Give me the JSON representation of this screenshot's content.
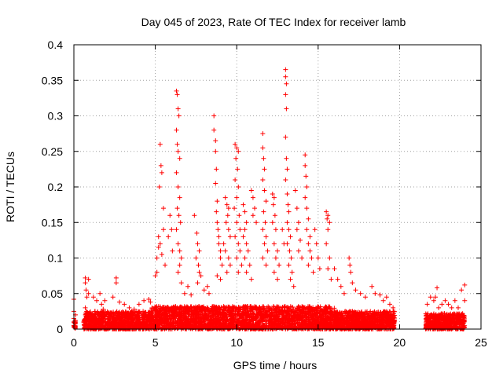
{
  "chart_data": {
    "type": "scatter",
    "title": "Day 045 of 2023, Rate Of TEC Index for receiver lamb",
    "xlabel": "GPS time / hours",
    "ylabel": "ROTI / TECUs",
    "xlim": [
      0,
      25
    ],
    "ylim": [
      0,
      0.4
    ],
    "xticks": [
      0,
      5,
      10,
      15,
      20,
      25
    ],
    "xtick_labels": [
      "0",
      "5",
      "10",
      "15",
      "20",
      "25"
    ],
    "yticks": [
      0,
      0.05,
      0.1,
      0.15,
      0.2,
      0.25,
      0.3,
      0.35,
      0.4
    ],
    "ytick_labels": [
      "0",
      "0.05",
      "0.1",
      "0.15",
      "0.2",
      "0.25",
      "0.3",
      "0.35",
      "0.4"
    ],
    "grid": true,
    "marker": "+",
    "color": "#ff0000",
    "series": [
      {
        "name": "",
        "points": [
          [
            0.0,
            0.042
          ],
          [
            0.0,
            0.025
          ],
          [
            0.0,
            0.015
          ],
          [
            0.0,
            0.01
          ],
          [
            0.0,
            0.005
          ],
          [
            0.1,
            0.02
          ],
          [
            0.1,
            0.012
          ],
          [
            0.1,
            0.008
          ],
          [
            0.0,
            0.003
          ],
          [
            0.7,
            0.072
          ],
          [
            0.7,
            0.065
          ],
          [
            0.75,
            0.055
          ],
          [
            0.8,
            0.045
          ],
          [
            0.9,
            0.07
          ],
          [
            0.9,
            0.05
          ],
          [
            0.7,
            0.03
          ],
          [
            0.8,
            0.02
          ],
          [
            1.2,
            0.045
          ],
          [
            1.4,
            0.04
          ],
          [
            1.6,
            0.05
          ],
          [
            1.7,
            0.035
          ],
          [
            1.9,
            0.04
          ],
          [
            1.3,
            0.025
          ],
          [
            1.8,
            0.028
          ],
          [
            2.6,
            0.072
          ],
          [
            2.6,
            0.065
          ],
          [
            2.4,
            0.045
          ],
          [
            2.8,
            0.038
          ],
          [
            3.1,
            0.035
          ],
          [
            3.4,
            0.03
          ],
          [
            3.7,
            0.028
          ],
          [
            4.0,
            0.035
          ],
          [
            4.3,
            0.04
          ],
          [
            4.6,
            0.042
          ],
          [
            4.7,
            0.038
          ],
          [
            5.0,
            0.075
          ],
          [
            5.1,
            0.1
          ],
          [
            5.2,
            0.13
          ],
          [
            5.25,
            0.2
          ],
          [
            5.3,
            0.26
          ],
          [
            5.35,
            0.23
          ],
          [
            5.4,
            0.22
          ],
          [
            5.5,
            0.17
          ],
          [
            5.5,
            0.14
          ],
          [
            5.6,
            0.09
          ],
          [
            5.3,
            0.12
          ],
          [
            5.2,
            0.115
          ],
          [
            5.4,
            0.105
          ],
          [
            5.1,
            0.08
          ],
          [
            5.8,
            0.13
          ],
          [
            5.9,
            0.16
          ],
          [
            6.0,
            0.14
          ],
          [
            6.05,
            0.11
          ],
          [
            6.3,
            0.335
          ],
          [
            6.35,
            0.33
          ],
          [
            6.4,
            0.31
          ],
          [
            6.45,
            0.3
          ],
          [
            6.3,
            0.28
          ],
          [
            6.35,
            0.26
          ],
          [
            6.4,
            0.25
          ],
          [
            6.5,
            0.24
          ],
          [
            6.3,
            0.22
          ],
          [
            6.4,
            0.2
          ],
          [
            6.5,
            0.185
          ],
          [
            6.35,
            0.17
          ],
          [
            6.45,
            0.16
          ],
          [
            6.55,
            0.15
          ],
          [
            6.3,
            0.14
          ],
          [
            6.4,
            0.12
          ],
          [
            6.5,
            0.11
          ],
          [
            6.6,
            0.1
          ],
          [
            6.5,
            0.09
          ],
          [
            6.4,
            0.08
          ],
          [
            6.6,
            0.065
          ],
          [
            6.8,
            0.05
          ],
          [
            7.0,
            0.06
          ],
          [
            7.2,
            0.048
          ],
          [
            7.4,
            0.16
          ],
          [
            7.55,
            0.135
          ],
          [
            7.6,
            0.12
          ],
          [
            7.7,
            0.11
          ],
          [
            7.5,
            0.1
          ],
          [
            7.65,
            0.09
          ],
          [
            7.8,
            0.075
          ],
          [
            7.6,
            0.065
          ],
          [
            7.7,
            0.08
          ],
          [
            8.0,
            0.055
          ],
          [
            8.2,
            0.06
          ],
          [
            8.3,
            0.05
          ],
          [
            8.6,
            0.3
          ],
          [
            8.6,
            0.28
          ],
          [
            8.7,
            0.265
          ],
          [
            8.7,
            0.25
          ],
          [
            8.75,
            0.225
          ],
          [
            8.7,
            0.205
          ],
          [
            8.8,
            0.18
          ],
          [
            8.75,
            0.165
          ],
          [
            8.8,
            0.15
          ],
          [
            8.85,
            0.14
          ],
          [
            8.9,
            0.13
          ],
          [
            8.9,
            0.12
          ],
          [
            9.0,
            0.11
          ],
          [
            9.0,
            0.1
          ],
          [
            9.1,
            0.09
          ],
          [
            8.8,
            0.075
          ],
          [
            9.0,
            0.07
          ],
          [
            9.3,
            0.185
          ],
          [
            9.4,
            0.175
          ],
          [
            9.5,
            0.17
          ],
          [
            9.45,
            0.16
          ],
          [
            9.35,
            0.15
          ],
          [
            9.5,
            0.14
          ],
          [
            9.6,
            0.13
          ],
          [
            9.2,
            0.12
          ],
          [
            9.3,
            0.11
          ],
          [
            9.5,
            0.1
          ],
          [
            9.6,
            0.09
          ],
          [
            9.4,
            0.08
          ],
          [
            9.9,
            0.26
          ],
          [
            10.0,
            0.255
          ],
          [
            10.1,
            0.25
          ],
          [
            9.95,
            0.24
          ],
          [
            10.05,
            0.225
          ],
          [
            9.9,
            0.21
          ],
          [
            10.1,
            0.2
          ],
          [
            10.0,
            0.185
          ],
          [
            9.85,
            0.17
          ],
          [
            10.15,
            0.16
          ],
          [
            10.0,
            0.15
          ],
          [
            10.2,
            0.14
          ],
          [
            9.9,
            0.13
          ],
          [
            10.1,
            0.12
          ],
          [
            10.2,
            0.11
          ],
          [
            10.0,
            0.1
          ],
          [
            10.3,
            0.09
          ],
          [
            10.1,
            0.08
          ],
          [
            10.4,
            0.175
          ],
          [
            10.5,
            0.165
          ],
          [
            10.6,
            0.15
          ],
          [
            10.5,
            0.14
          ],
          [
            10.4,
            0.13
          ],
          [
            10.6,
            0.12
          ],
          [
            10.7,
            0.11
          ],
          [
            10.5,
            0.1
          ],
          [
            10.8,
            0.09
          ],
          [
            10.6,
            0.08
          ],
          [
            10.9,
            0.07
          ],
          [
            10.9,
            0.195
          ],
          [
            11.0,
            0.185
          ],
          [
            11.1,
            0.17
          ],
          [
            11.0,
            0.16
          ],
          [
            11.2,
            0.15
          ],
          [
            11.6,
            0.275
          ],
          [
            11.6,
            0.255
          ],
          [
            11.65,
            0.24
          ],
          [
            11.7,
            0.225
          ],
          [
            11.6,
            0.21
          ],
          [
            11.7,
            0.195
          ],
          [
            11.8,
            0.18
          ],
          [
            11.65,
            0.165
          ],
          [
            11.75,
            0.15
          ],
          [
            11.6,
            0.14
          ],
          [
            11.8,
            0.13
          ],
          [
            11.7,
            0.12
          ],
          [
            11.9,
            0.11
          ],
          [
            11.6,
            0.1
          ],
          [
            11.8,
            0.09
          ],
          [
            12.2,
            0.19
          ],
          [
            12.3,
            0.185
          ],
          [
            12.25,
            0.175
          ],
          [
            12.35,
            0.16
          ],
          [
            12.2,
            0.15
          ],
          [
            12.4,
            0.14
          ],
          [
            12.3,
            0.12
          ],
          [
            12.5,
            0.11
          ],
          [
            12.4,
            0.1
          ],
          [
            12.6,
            0.09
          ],
          [
            12.3,
            0.08
          ],
          [
            12.5,
            0.07
          ],
          [
            12.8,
            0.14
          ],
          [
            12.9,
            0.12
          ],
          [
            13.0,
            0.365
          ],
          [
            13.0,
            0.355
          ],
          [
            13.05,
            0.345
          ],
          [
            13.0,
            0.33
          ],
          [
            13.05,
            0.31
          ],
          [
            13.0,
            0.27
          ],
          [
            13.05,
            0.24
          ],
          [
            13.1,
            0.225
          ],
          [
            13.0,
            0.21
          ],
          [
            13.1,
            0.19
          ],
          [
            13.15,
            0.175
          ],
          [
            13.2,
            0.165
          ],
          [
            13.1,
            0.15
          ],
          [
            13.2,
            0.14
          ],
          [
            13.3,
            0.13
          ],
          [
            13.1,
            0.12
          ],
          [
            13.25,
            0.11
          ],
          [
            13.35,
            0.1
          ],
          [
            13.2,
            0.09
          ],
          [
            13.4,
            0.08
          ],
          [
            13.3,
            0.07
          ],
          [
            13.5,
            0.06
          ],
          [
            13.6,
            0.195
          ],
          [
            13.7,
            0.17
          ],
          [
            13.8,
            0.15
          ],
          [
            13.7,
            0.14
          ],
          [
            13.9,
            0.125
          ],
          [
            13.8,
            0.11
          ],
          [
            14.0,
            0.1
          ],
          [
            14.2,
            0.245
          ],
          [
            14.2,
            0.23
          ],
          [
            14.25,
            0.215
          ],
          [
            14.3,
            0.2
          ],
          [
            14.2,
            0.185
          ],
          [
            14.3,
            0.17
          ],
          [
            14.4,
            0.155
          ],
          [
            14.3,
            0.14
          ],
          [
            14.5,
            0.13
          ],
          [
            14.4,
            0.12
          ],
          [
            14.5,
            0.11
          ],
          [
            14.6,
            0.1
          ],
          [
            14.4,
            0.09
          ],
          [
            14.7,
            0.08
          ],
          [
            14.8,
            0.14
          ],
          [
            14.9,
            0.12
          ],
          [
            15.0,
            0.1
          ],
          [
            15.1,
            0.085
          ],
          [
            15.5,
            0.165
          ],
          [
            15.6,
            0.16
          ],
          [
            15.55,
            0.155
          ],
          [
            15.7,
            0.15
          ],
          [
            15.6,
            0.14
          ],
          [
            15.5,
            0.12
          ],
          [
            15.7,
            0.1
          ],
          [
            15.6,
            0.085
          ],
          [
            15.8,
            0.07
          ],
          [
            16.0,
            0.085
          ],
          [
            16.2,
            0.07
          ],
          [
            16.4,
            0.06
          ],
          [
            16.6,
            0.05
          ],
          [
            16.9,
            0.1
          ],
          [
            16.95,
            0.09
          ],
          [
            17.0,
            0.08
          ],
          [
            17.1,
            0.065
          ],
          [
            17.3,
            0.055
          ],
          [
            17.6,
            0.05
          ],
          [
            17.9,
            0.045
          ],
          [
            18.3,
            0.06
          ],
          [
            18.5,
            0.05
          ],
          [
            18.8,
            0.048
          ],
          [
            19.0,
            0.04
          ],
          [
            19.2,
            0.045
          ],
          [
            19.4,
            0.035
          ],
          [
            19.6,
            0.03
          ],
          [
            21.7,
            0.035
          ],
          [
            21.9,
            0.045
          ],
          [
            22.1,
            0.04
          ],
          [
            22.2,
            0.045
          ],
          [
            22.3,
            0.058
          ],
          [
            22.4,
            0.03
          ],
          [
            22.6,
            0.035
          ],
          [
            22.8,
            0.04
          ],
          [
            23.0,
            0.035
          ],
          [
            23.2,
            0.03
          ],
          [
            23.4,
            0.04
          ],
          [
            23.6,
            0.03
          ],
          [
            23.8,
            0.055
          ],
          [
            24.0,
            0.062
          ],
          [
            24.0,
            0.04
          ]
        ]
      }
    ],
    "dense_bands": [
      {
        "x_from": 0.0,
        "x_to": 0.1,
        "y_min": 0.0,
        "y_max": 0.012
      },
      {
        "x_from": 0.6,
        "x_to": 4.7,
        "y_min": 0.0,
        "y_max": 0.025
      },
      {
        "x_from": 4.7,
        "x_to": 16.0,
        "y_min": 0.0,
        "y_max": 0.032
      },
      {
        "x_from": 16.0,
        "x_to": 19.7,
        "y_min": 0.0,
        "y_max": 0.025
      },
      {
        "x_from": 21.6,
        "x_to": 24.0,
        "y_min": 0.0,
        "y_max": 0.022
      }
    ]
  }
}
